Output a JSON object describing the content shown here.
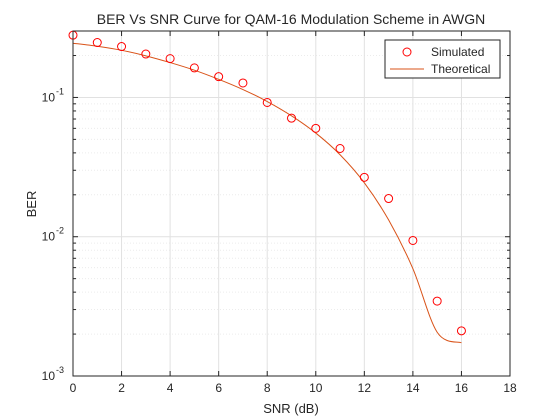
{
  "chart_data": {
    "type": "scatter",
    "title": "BER Vs SNR Curve for QAM-16 Modulation Scheme in AWGN",
    "xlabel": "SNR (dB)",
    "ylabel": "BER",
    "xlim": [
      0,
      18
    ],
    "ylim": [
      0.001,
      0.3
    ],
    "yscale": "log",
    "x_ticks": [
      0,
      2,
      4,
      6,
      8,
      10,
      12,
      14,
      16,
      18
    ],
    "x_tick_labels": [
      "0",
      "2",
      "4",
      "6",
      "8",
      "10",
      "12",
      "14",
      "16",
      "18"
    ],
    "y_ticks": [
      0.001,
      0.01,
      0.1
    ],
    "y_tick_base": "10",
    "y_tick_exponents": [
      "-3",
      "-2",
      "-1"
    ],
    "grid": true,
    "minor_grid": true,
    "legend_position": "top-right",
    "series": [
      {
        "name": "Simulated",
        "style": "markers",
        "marker": "circle",
        "color": "#ff0000",
        "x": [
          0,
          1,
          2,
          3,
          4,
          5,
          6,
          7,
          8,
          9,
          10,
          11,
          12,
          13,
          14,
          15,
          16
        ],
        "y": [
          0.28,
          0.248,
          0.232,
          0.205,
          0.19,
          0.163,
          0.141,
          0.127,
          0.092,
          0.071,
          0.06,
          0.043,
          0.0267,
          0.0188,
          0.0094,
          0.00345,
          0.00211
        ]
      },
      {
        "name": "Theoretical",
        "style": "line",
        "color": "#d95319",
        "x": [
          0,
          1,
          2,
          3,
          4,
          5,
          6,
          7,
          8,
          9,
          10,
          11,
          12,
          13,
          14,
          15,
          16
        ],
        "y": [
          0.245,
          0.233,
          0.218,
          0.199,
          0.178,
          0.157,
          0.135,
          0.114,
          0.0935,
          0.0738,
          0.0555,
          0.0388,
          0.0244,
          0.0132,
          0.0059,
          0.00206,
          0.00173
        ]
      }
    ]
  }
}
